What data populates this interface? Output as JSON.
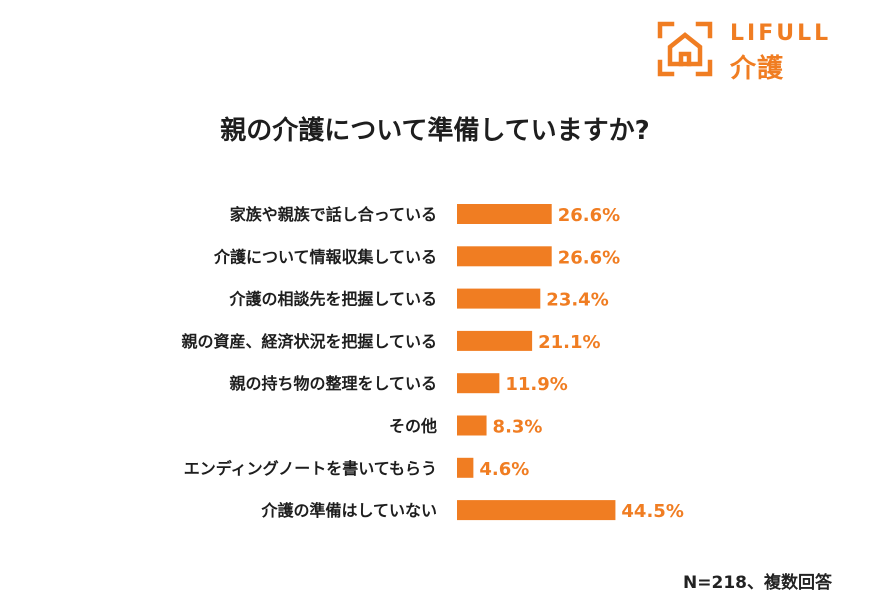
{
  "brand": {
    "name_top": "LIFULL",
    "name_bottom": "介護",
    "color": "#f07d22",
    "icon": "house-frame-icon"
  },
  "colors": {
    "bar": "#f07d22",
    "value_label": "#f07d22",
    "category_label": "#1e1e1e"
  },
  "footnote": "N=218、複数回答",
  "chart_data": {
    "type": "bar",
    "orientation": "horizontal",
    "title": "親の介護について準備していますか?",
    "categories": [
      "家族や親族で話し合っている",
      "介護について情報収集している",
      "介護の相談先を把握している",
      "親の資産、経済状況を把握している",
      "親の持ち物の整理をしている",
      "その他",
      "エンディングノートを書いてもらう",
      "介護の準備はしていない"
    ],
    "values": [
      26.6,
      26.6,
      23.4,
      21.1,
      11.9,
      8.3,
      4.6,
      44.5
    ],
    "value_labels": [
      "26.6%",
      "26.6%",
      "23.4%",
      "21.1%",
      "11.9%",
      "8.3%",
      "4.6%",
      "44.5%"
    ],
    "xlim": [
      0,
      100
    ],
    "unit": "%",
    "grid": false,
    "xlabel": "",
    "ylabel": ""
  }
}
